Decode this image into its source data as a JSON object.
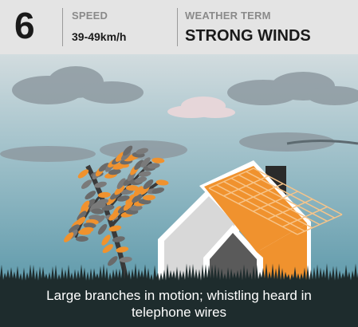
{
  "header": {
    "number": 6,
    "speed_label": "SPEED",
    "speed": "39-49km/h",
    "term_label": "WEATHER TERM",
    "term": "STRONG WINDS"
  },
  "caption": "Large branches in motion; whistling heard in telephone wires"
}
